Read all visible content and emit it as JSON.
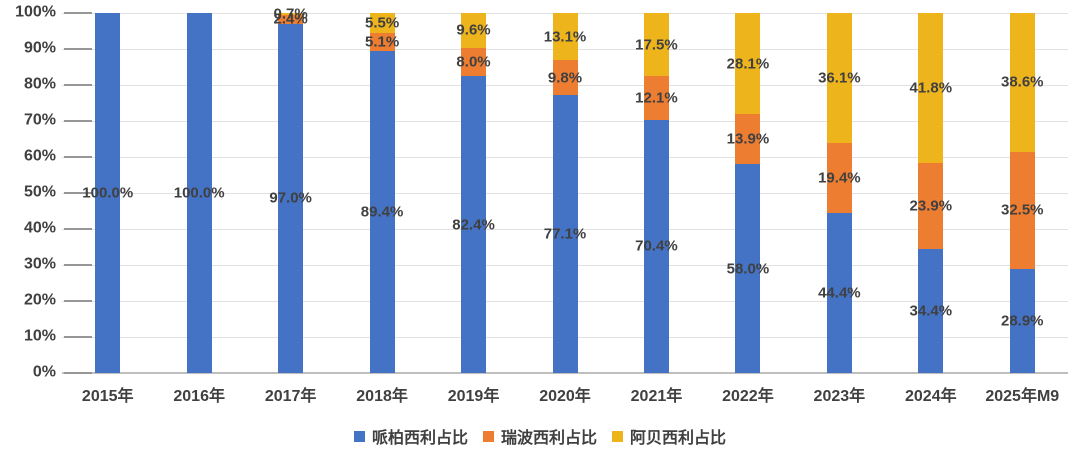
{
  "chart_data": {
    "type": "bar",
    "subtype": "stacked-100-percent",
    "title": "",
    "xlabel": "",
    "ylabel": "",
    "categories": [
      "2015年",
      "2016年",
      "2017年",
      "2018年",
      "2019年",
      "2020年",
      "2021年",
      "2022年",
      "2023年",
      "2024年",
      "2025年M9"
    ],
    "series": [
      {
        "name": "哌柏西利占比",
        "color": "#4472C4",
        "values": [
          100.0,
          100.0,
          97.0,
          89.4,
          82.4,
          77.1,
          70.4,
          58.0,
          44.4,
          34.4,
          28.9
        ]
      },
      {
        "name": "瑞波西利占比",
        "color": "#ED7D31",
        "values": [
          0,
          0,
          2.4,
          5.1,
          8.0,
          9.8,
          12.1,
          13.9,
          19.4,
          23.9,
          32.5
        ]
      },
      {
        "name": "阿贝西利占比",
        "color": "#EEB41C",
        "values": [
          0,
          0,
          0.7,
          5.5,
          9.6,
          13.1,
          17.5,
          28.1,
          36.1,
          41.8,
          38.6
        ]
      }
    ],
    "data_labels": {
      "visible": true,
      "format": "one-decimal-percent",
      "examples": [
        "100.0%",
        "97.0%",
        "89.4%",
        "82.4%",
        "77.1%",
        "70.4%",
        "58.0%",
        "44.4%",
        "34.4%",
        "28.9%",
        "2.4%",
        "5.1%",
        "8.0%",
        "9.8%",
        "12.1%",
        "13.9%",
        "19.4%",
        "23.9%",
        "32.5%",
        "0.7%",
        "5.5%",
        "9.6%",
        "13.1%",
        "17.5%",
        "28.1%",
        "36.1%",
        "41.8%",
        "38.6%"
      ]
    },
    "y_ticks": [
      "0%",
      "10%",
      "20%",
      "30%",
      "40%",
      "50%",
      "60%",
      "70%",
      "80%",
      "90%",
      "100%"
    ],
    "ylim": [
      0,
      100
    ],
    "grid": true,
    "legend_position": "bottom"
  },
  "styles": {
    "label_color": "#404040",
    "grid_color": "#E1E1E1",
    "axis_line_color": "#BFBFBF",
    "tick_color": "#969696",
    "background": "#FFFFFF"
  }
}
